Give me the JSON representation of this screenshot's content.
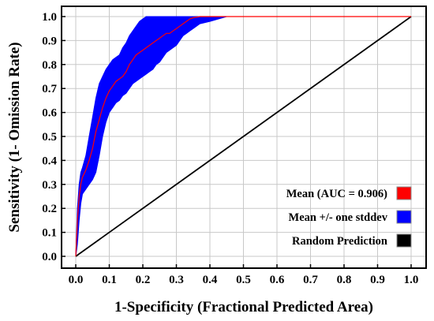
{
  "chart_data": {
    "type": "line",
    "xlabel": "1-Specificity (Fractional Predicted Area)",
    "ylabel": "Sensitivity (1- Omission Rate)",
    "xlim": [
      0.0,
      1.0
    ],
    "ylim": [
      0.0,
      1.0
    ],
    "xticks": [
      "0.0",
      "0.1",
      "0.2",
      "0.3",
      "0.4",
      "0.5",
      "0.6",
      "0.7",
      "0.8",
      "0.9",
      "1.0"
    ],
    "yticks": [
      "0.0",
      "0.1",
      "0.2",
      "0.3",
      "0.4",
      "0.5",
      "0.6",
      "0.7",
      "0.8",
      "0.9",
      "1.0"
    ],
    "grid": true,
    "legend_position": "bottom-right",
    "series": [
      {
        "name": "Mean (AUC = 0.906)",
        "kind": "line",
        "color": "#ff0000",
        "x": [
          0.0,
          0.005,
          0.01,
          0.015,
          0.02,
          0.03,
          0.04,
          0.05,
          0.06,
          0.07,
          0.08,
          0.09,
          0.1,
          0.11,
          0.12,
          0.13,
          0.14,
          0.15,
          0.16,
          0.17,
          0.18,
          0.19,
          0.2,
          0.21,
          0.22,
          0.23,
          0.24,
          0.25,
          0.26,
          0.27,
          0.28,
          0.29,
          0.3,
          0.31,
          0.32,
          0.33,
          0.34,
          0.35,
          0.37,
          0.4,
          0.45,
          0.5,
          0.6,
          0.7,
          0.8,
          0.9,
          1.0
        ],
        "y": [
          0.0,
          0.15,
          0.25,
          0.3,
          0.33,
          0.36,
          0.4,
          0.45,
          0.52,
          0.57,
          0.62,
          0.66,
          0.69,
          0.71,
          0.73,
          0.74,
          0.75,
          0.77,
          0.8,
          0.82,
          0.84,
          0.85,
          0.86,
          0.87,
          0.88,
          0.89,
          0.9,
          0.91,
          0.92,
          0.93,
          0.93,
          0.94,
          0.95,
          0.96,
          0.97,
          0.98,
          0.99,
          0.995,
          1.0,
          1.0,
          1.0,
          1.0,
          1.0,
          1.0,
          1.0,
          1.0,
          1.0
        ]
      },
      {
        "name": "Mean +/- one stddev",
        "kind": "band",
        "color": "#0000ff",
        "x": [
          0.0,
          0.005,
          0.01,
          0.015,
          0.02,
          0.03,
          0.04,
          0.05,
          0.06,
          0.07,
          0.08,
          0.09,
          0.1,
          0.11,
          0.12,
          0.13,
          0.14,
          0.15,
          0.16,
          0.17,
          0.18,
          0.19,
          0.2,
          0.21,
          0.22,
          0.23,
          0.24,
          0.25,
          0.26,
          0.27,
          0.28,
          0.29,
          0.3,
          0.31,
          0.32,
          0.33,
          0.34,
          0.35,
          0.37,
          0.4,
          0.45,
          0.5,
          1.0
        ],
        "upper": [
          0.0,
          0.2,
          0.3,
          0.35,
          0.37,
          0.42,
          0.5,
          0.58,
          0.66,
          0.72,
          0.75,
          0.78,
          0.8,
          0.82,
          0.83,
          0.84,
          0.87,
          0.89,
          0.92,
          0.94,
          0.96,
          0.98,
          0.99,
          1.0,
          1.0,
          1.0,
          1.0,
          1.0,
          1.0,
          1.0,
          1.0,
          1.0,
          1.0,
          1.0,
          1.0,
          1.0,
          1.0,
          1.0,
          1.0,
          1.0,
          1.0,
          1.0,
          1.0
        ],
        "lower": [
          0.0,
          0.05,
          0.15,
          0.22,
          0.26,
          0.28,
          0.3,
          0.32,
          0.35,
          0.42,
          0.5,
          0.56,
          0.6,
          0.62,
          0.64,
          0.65,
          0.67,
          0.68,
          0.7,
          0.72,
          0.73,
          0.74,
          0.75,
          0.76,
          0.77,
          0.78,
          0.8,
          0.81,
          0.83,
          0.85,
          0.86,
          0.87,
          0.88,
          0.9,
          0.92,
          0.93,
          0.94,
          0.95,
          0.97,
          0.98,
          1.0,
          1.0,
          1.0
        ]
      },
      {
        "name": "Random Prediction",
        "kind": "line",
        "color": "#000000",
        "x": [
          0.0,
          1.0
        ],
        "y": [
          0.0,
          1.0
        ]
      }
    ]
  }
}
